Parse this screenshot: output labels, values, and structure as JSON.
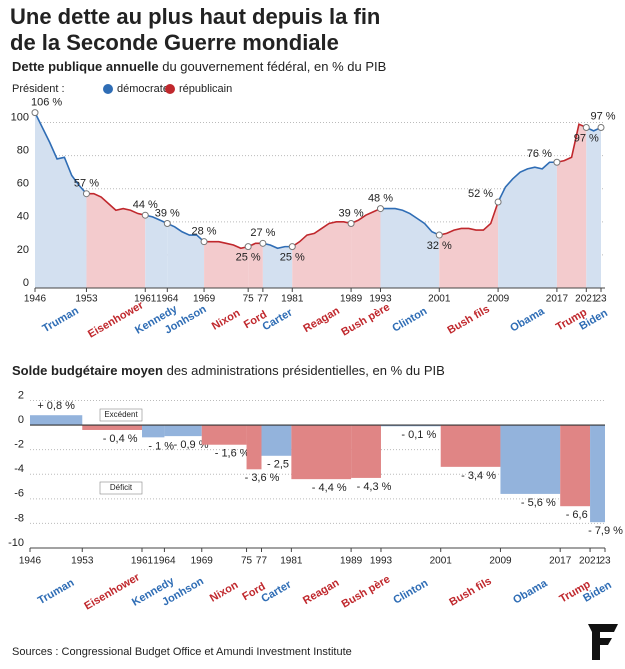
{
  "title": [
    "Une dette au plus haut depuis la fin",
    "de la Seconde Guerre mondiale"
  ],
  "legend_label": "Président :",
  "parties": [
    {
      "name": "démocrate",
      "color": "#2f6db5",
      "area_color": "#d3e0f0",
      "bar_color": "#93b3dc"
    },
    {
      "name": "républicain",
      "color": "#c0282d",
      "area_color": "#f3cbcd",
      "bar_color": "#e08585"
    }
  ],
  "administrations": [
    {
      "name": "Truman",
      "start": 1946,
      "end": 1953,
      "party": "démocrate"
    },
    {
      "name": "Eisenhower",
      "start": 1953,
      "end": 1961,
      "party": "républicain"
    },
    {
      "name": "Kennedy",
      "start": 1961,
      "end": 1964,
      "party": "démocrate"
    },
    {
      "name": "Jonhson",
      "start": 1964,
      "end": 1969,
      "party": "démocrate"
    },
    {
      "name": "Nixon",
      "start": 1969,
      "end": 1975,
      "party": "républicain"
    },
    {
      "name": "Ford",
      "start": 1975,
      "end": 1977,
      "party": "républicain"
    },
    {
      "name": "Carter",
      "start": 1977,
      "end": 1981,
      "party": "démocrate"
    },
    {
      "name": "Reagan",
      "start": 1981,
      "end": 1989,
      "party": "républicain"
    },
    {
      "name": "Bush père",
      "start": 1989,
      "end": 1993,
      "party": "républicain"
    },
    {
      "name": "Clinton",
      "start": 1993,
      "end": 2001,
      "party": "démocrate"
    },
    {
      "name": "Bush fils",
      "start": 2001,
      "end": 2009,
      "party": "républicain"
    },
    {
      "name": "Obama",
      "start": 2009,
      "end": 2017,
      "party": "démocrate"
    },
    {
      "name": "Trump",
      "start": 2017,
      "end": 2021,
      "party": "républicain"
    },
    {
      "name": "Biden",
      "start": 2021,
      "end": 2023,
      "party": "démocrate"
    }
  ],
  "chart_data": [
    {
      "type": "line",
      "subtitle_bold": "Dette publique annuelle",
      "subtitle": " du gouvernement fédéral, en % du PIB",
      "x": [
        1946,
        1947,
        1948,
        1949,
        1950,
        1951,
        1952,
        1953,
        1954,
        1955,
        1956,
        1957,
        1958,
        1959,
        1960,
        1961,
        1962,
        1963,
        1964,
        1965,
        1966,
        1967,
        1968,
        1969,
        1970,
        1971,
        1972,
        1973,
        1974,
        1975,
        1976,
        1977,
        1978,
        1979,
        1980,
        1981,
        1982,
        1983,
        1984,
        1985,
        1986,
        1987,
        1988,
        1989,
        1990,
        1991,
        1992,
        1993,
        1994,
        1995,
        1996,
        1997,
        1998,
        1999,
        2000,
        2001,
        2002,
        2003,
        2004,
        2005,
        2006,
        2007,
        2008,
        2009,
        2010,
        2011,
        2012,
        2013,
        2014,
        2015,
        2016,
        2017,
        2018,
        2019,
        2020,
        2021,
        2022,
        2023
      ],
      "values": [
        106,
        97,
        88,
        78,
        79,
        68,
        62,
        57,
        57,
        55,
        51,
        47,
        48,
        47,
        45,
        44,
        43,
        41,
        39,
        37,
        34,
        32,
        32,
        28,
        28,
        28,
        27,
        26,
        24,
        25,
        27,
        27,
        26,
        24,
        25,
        25,
        28,
        32,
        33,
        36,
        39,
        40,
        40,
        39,
        41,
        44,
        46,
        48,
        48,
        48,
        47,
        45,
        42,
        39,
        34,
        32,
        33,
        35,
        36,
        36,
        35,
        35,
        39,
        52,
        61,
        66,
        70,
        72,
        73,
        72,
        76,
        76,
        77,
        79,
        99,
        97,
        95,
        97
      ],
      "value_labels": [
        "106 %",
        null,
        null,
        null,
        null,
        null,
        null,
        "57 %",
        null,
        null,
        null,
        null,
        null,
        null,
        null,
        "44 %",
        null,
        null,
        "39 %",
        null,
        null,
        null,
        null,
        "28 %",
        null,
        null,
        null,
        null,
        null,
        "25 %",
        null,
        "27 %",
        null,
        null,
        null,
        "25 %",
        null,
        null,
        null,
        null,
        null,
        null,
        null,
        "39 %",
        null,
        null,
        null,
        "48 %",
        null,
        null,
        null,
        null,
        null,
        null,
        null,
        "32 %",
        null,
        null,
        null,
        null,
        null,
        null,
        null,
        "52 %",
        null,
        null,
        null,
        null,
        null,
        null,
        null,
        "76 %",
        null,
        null,
        null,
        "97 %",
        null,
        "97 %"
      ],
      "xlim": [
        1946,
        2023
      ],
      "ylim": [
        0,
        110
      ],
      "yticks": [
        0,
        20,
        40,
        60,
        80,
        100
      ],
      "xticks": [
        1946,
        1953,
        1961,
        1964,
        1969,
        {
          "value": 1975,
          "label": "75"
        },
        {
          "value": 1977,
          "label": "77"
        },
        1981,
        1989,
        1993,
        2001,
        2009,
        2017,
        2021,
        {
          "value": 2023,
          "label": "23"
        }
      ],
      "grid": true
    },
    {
      "type": "bar",
      "subtitle_bold": "Solde budgétaire moyen",
      "subtitle": " des administrations présidentielles, en % du PIB",
      "values": [
        0.8,
        -0.4,
        -1,
        -0.9,
        -1.6,
        -3.6,
        -2.5,
        -4.4,
        -4.3,
        -0.1,
        -3.4,
        -5.6,
        -6.6,
        -7.9
      ],
      "value_labels": [
        "+ 0,8 %",
        "- 0,4 %",
        "- 1 %",
        "- 0,9 %",
        "- 1,6 %",
        "- 3,6 %",
        "- 2,5 %",
        "- 4,4 %",
        "- 4,3 %",
        "- 0,1 %",
        "- 3,4 %",
        "- 5,6 %",
        "- 6,6 %",
        "- 7,9 %"
      ],
      "annotations": [
        "Excédent",
        "Déficit"
      ],
      "xlim": [
        1946,
        2023
      ],
      "ylim": [
        -10,
        2.2
      ],
      "yticks": [
        2,
        0,
        -2,
        -4,
        -6,
        -8,
        -10
      ],
      "xticks": [
        1946,
        1953,
        1961,
        1964,
        1969,
        {
          "value": 1975,
          "label": "75"
        },
        {
          "value": 1977,
          "label": "77"
        },
        1981,
        1989,
        1993,
        2001,
        2009,
        2017,
        2021,
        {
          "value": 2023,
          "label": "23"
        }
      ],
      "grid": true
    }
  ],
  "source": "Sources : Congressional Budget Office et Amundi Investment Institute"
}
